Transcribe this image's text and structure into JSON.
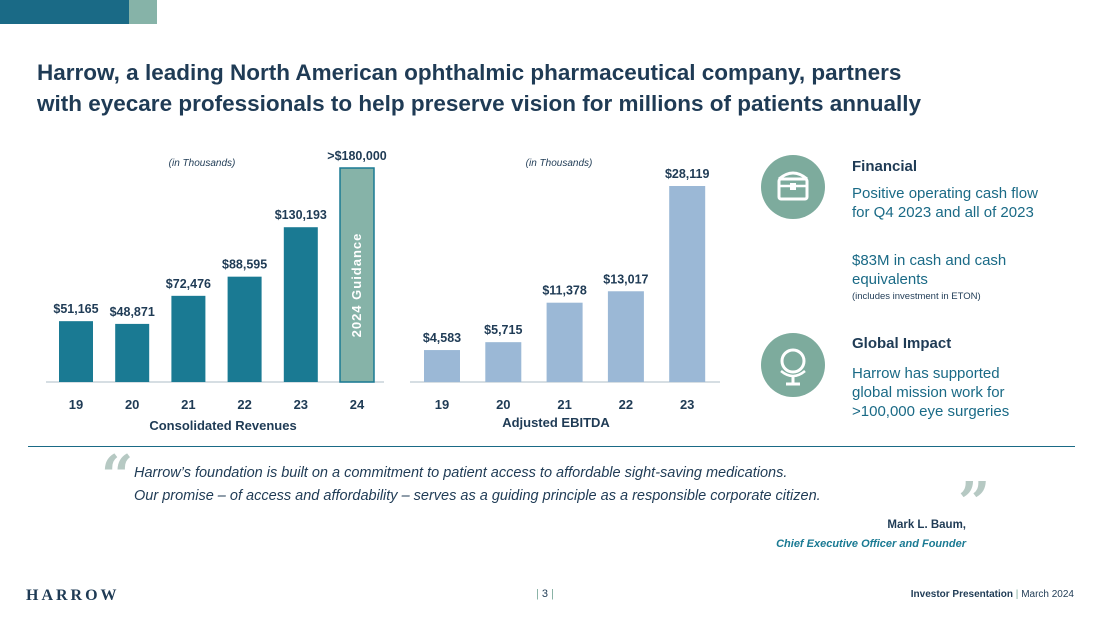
{
  "title": {
    "line1": "Harrow, a leading North American ophthalmic pharmaceutical company, partners",
    "line2": "with eyecare professionals to help preserve vision for millions of patients annually"
  },
  "chart_data": [
    {
      "type": "bar",
      "title": "Consolidated Revenues",
      "unit_note": "(in Thousands)",
      "categories": [
        "19",
        "20",
        "21",
        "22",
        "23",
        "24"
      ],
      "values": [
        51165,
        48871,
        72476,
        88595,
        130193,
        180000
      ],
      "value_labels": [
        "$51,165",
        "$48,871",
        "$72,476",
        "$88,595",
        "$130,193",
        ">$180,000"
      ],
      "highlight": {
        "category": "24",
        "label": "2024 Guidance"
      },
      "colors": {
        "bar": "#1a7a93",
        "highlight": "#86b3a8"
      },
      "xlabel": "Consolidated Revenues",
      "ylabel": "",
      "ylim": [
        0,
        180000
      ]
    },
    {
      "type": "bar",
      "title": "Adjusted EBITDA",
      "unit_note": "(in Thousands)",
      "categories": [
        "19",
        "20",
        "21",
        "22",
        "23"
      ],
      "values": [
        4583,
        5715,
        11378,
        13017,
        28119
      ],
      "value_labels": [
        "$4,583",
        "$5,715",
        "$11,378",
        "$13,017",
        "$28,119"
      ],
      "colors": {
        "bar": "#9bb8d6"
      },
      "xlabel": "Adjusted EBITDA",
      "ylabel": "",
      "ylim": [
        0,
        28119
      ]
    }
  ],
  "sidebar": {
    "financial": {
      "icon": "treasure-chest-icon",
      "heading": "Financial",
      "text1": "Positive operating cash flow for Q4 2023 and all of 2023",
      "text2": "$83M in cash and cash equivalents",
      "note": "(includes investment in ETON)"
    },
    "global": {
      "icon": "globe-icon",
      "heading": "Global Impact",
      "text": "Harrow has supported global mission work for >100,000 eye surgeries"
    }
  },
  "quote": {
    "line1": "Harrow’s foundation is built on a commitment to patient access to affordable sight-saving medications.",
    "line2": "Our promise – of access and affordability – serves as a guiding principle as a responsible corporate citizen.",
    "author": "Mark L. Baum,",
    "role": "Chief Executive Officer and Founder"
  },
  "footer": {
    "logo": "HARROW",
    "page_number": "3",
    "presentation": "Investor Presentation",
    "date": "March 2024"
  }
}
